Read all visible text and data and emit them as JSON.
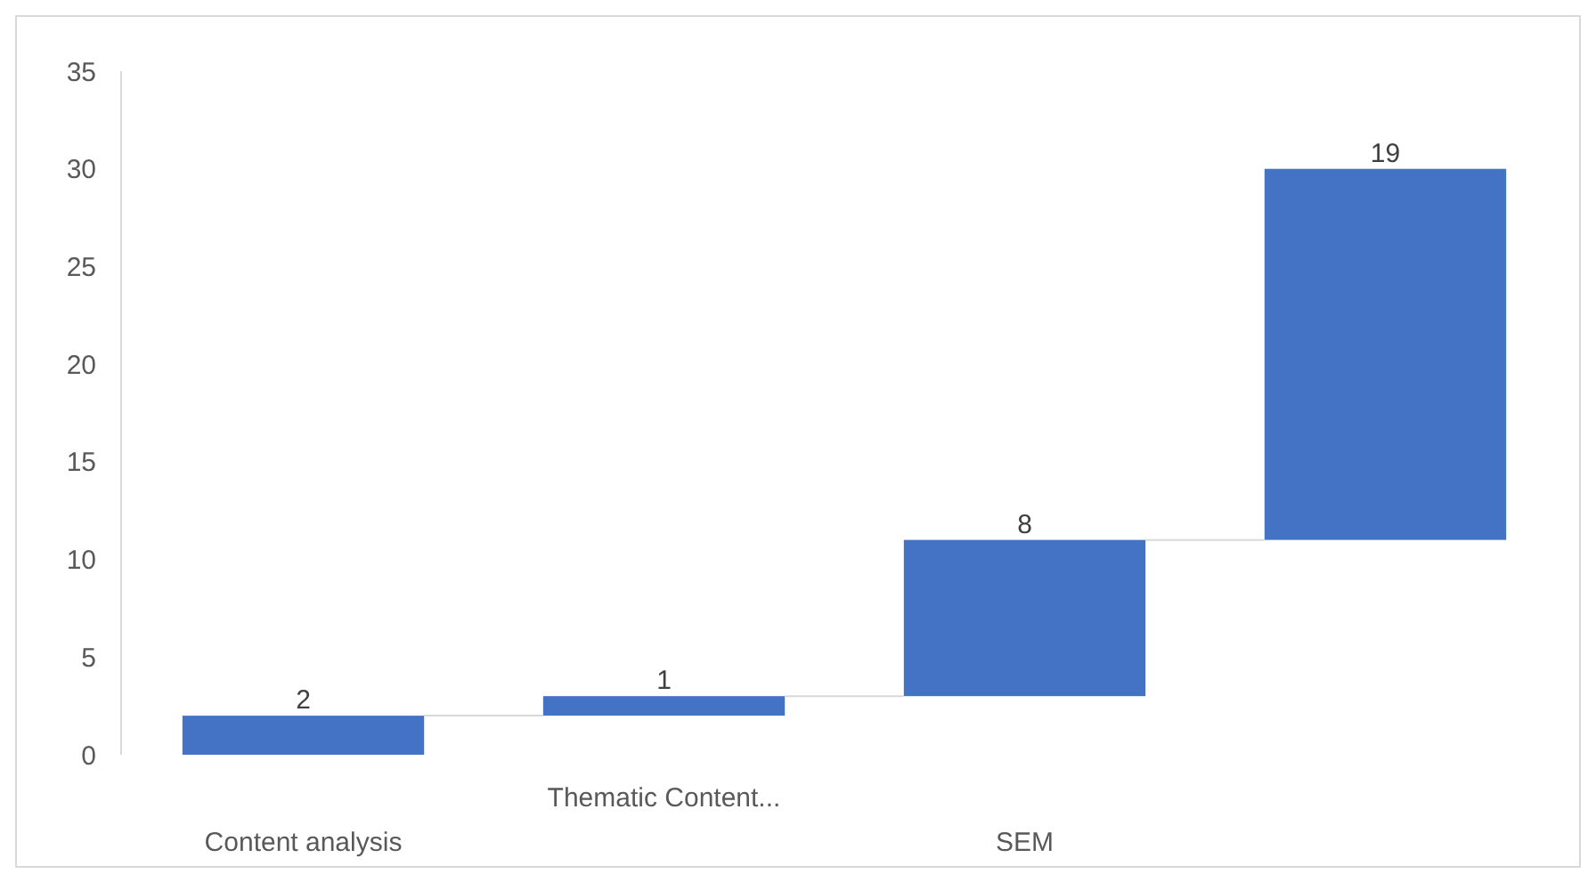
{
  "chart_data": {
    "type": "bar",
    "categories": [
      "Content analysis",
      "Thematic Content...",
      "SEM",
      null
    ],
    "values": [
      2,
      1,
      8,
      19
    ],
    "base": [
      0,
      2,
      3,
      11
    ],
    "color": "#4472c4",
    "data_labels": true,
    "ylim": [
      0,
      35
    ],
    "yticks": [
      0,
      5,
      10,
      15,
      20,
      25,
      30,
      35
    ],
    "grid": false
  }
}
